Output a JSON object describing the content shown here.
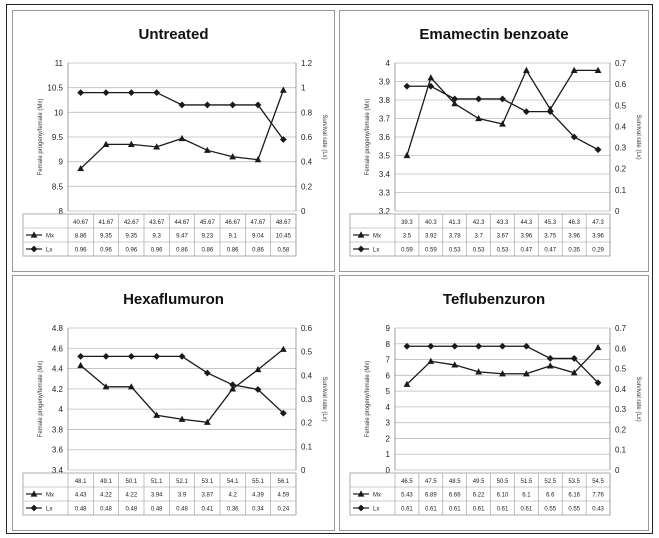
{
  "colors": {
    "series": "#1a1a1a",
    "grid": "#bdbdbd",
    "panel_border": "#9a9a9a"
  },
  "chart_data": [
    {
      "type": "line",
      "title": "Untreated",
      "ylabel": "Female progeny/female (Mx)",
      "y2label": "Survival rate (Lx)",
      "categories": [
        "40.67",
        "41.67",
        "42.67",
        "43.67",
        "44.67",
        "45.67",
        "46.67",
        "47.67",
        "48.67"
      ],
      "ylim": [
        8,
        11
      ],
      "ystep": 0.5,
      "yticks": [
        "8",
        "8.5",
        "9",
        "9.5",
        "10",
        "10.5",
        "11"
      ],
      "y2lim": [
        0,
        1.2
      ],
      "y2step": 0.2,
      "y2ticks": [
        "0",
        "0.2",
        "0.4",
        "0.6",
        "0.8",
        "1",
        "1.2"
      ],
      "series": [
        {
          "name": "Mx",
          "axis": "left",
          "marker": "triangle",
          "values": [
            8.86,
            9.35,
            9.35,
            9.3,
            9.47,
            9.23,
            9.1,
            9.04,
            10.45
          ],
          "labels": [
            "8.86",
            "9.35",
            "9.35",
            "9.3",
            "9.47",
            "9.23",
            "9.1",
            "9.04",
            "10.45"
          ]
        },
        {
          "name": "Lx",
          "axis": "right",
          "marker": "diamond",
          "values": [
            0.96,
            0.96,
            0.96,
            0.96,
            0.86,
            0.86,
            0.86,
            0.86,
            0.58
          ],
          "labels": [
            "0.96",
            "0.96",
            "0.96",
            "0.96",
            "0.86",
            "0.86",
            "0.86",
            "0.86",
            "0.58"
          ]
        }
      ]
    },
    {
      "type": "line",
      "title": "Emamectin benzoate",
      "ylabel": "Female progeny/female (Mx)",
      "y2label": "Survival rate (Lx)",
      "categories": [
        "39.3",
        "40.3",
        "41.3",
        "42.3",
        "43.3",
        "44.3",
        "45.3",
        "46.3",
        "47.3"
      ],
      "ylim": [
        3.2,
        4
      ],
      "ystep": 0.1,
      "yticks": [
        "3.2",
        "3.3",
        "3.4",
        "3.5",
        "3.6",
        "3.7",
        "3.8",
        "3.9",
        "4"
      ],
      "y2lim": [
        0,
        0.7
      ],
      "y2step": 0.1,
      "y2ticks": [
        "0",
        "0.1",
        "0.2",
        "0.3",
        "0.4",
        "0.5",
        "0.6",
        "0.7"
      ],
      "series": [
        {
          "name": "Mx",
          "axis": "left",
          "marker": "triangle",
          "values": [
            3.5,
            3.92,
            3.78,
            3.7,
            3.67,
            3.96,
            3.75,
            3.96,
            3.96
          ],
          "labels": [
            "3.5",
            "3.92",
            "3.78",
            "3.7",
            "3.67",
            "3.96",
            "3.75",
            "3.96",
            "3.96"
          ]
        },
        {
          "name": "Lx",
          "axis": "right",
          "marker": "diamond",
          "values": [
            0.59,
            0.59,
            0.53,
            0.53,
            0.53,
            0.47,
            0.47,
            0.35,
            0.29
          ],
          "labels": [
            "0.59",
            "0.59",
            "0.53",
            "0.53",
            "0.53",
            "0.47",
            "0.47",
            "0.35",
            "0.29"
          ]
        }
      ]
    },
    {
      "type": "line",
      "title": "Hexaflumuron",
      "ylabel": "Female progeny/female (Mx)",
      "y2label": "Survival rate (Lx)",
      "categories": [
        "48.1",
        "49.1",
        "50.1",
        "51.1",
        "52.1",
        "53.1",
        "54.1",
        "55.1",
        "56.1"
      ],
      "ylim": [
        3.4,
        4.8
      ],
      "ystep": 0.2,
      "yticks": [
        "3.4",
        "3.6",
        "3.8",
        "4",
        "4.2",
        "4.4",
        "4.6",
        "4.8"
      ],
      "y2lim": [
        0,
        0.6
      ],
      "y2step": 0.1,
      "y2ticks": [
        "0",
        "0.1",
        "0.2",
        "0.3",
        "0.4",
        "0.5",
        "0.6"
      ],
      "series": [
        {
          "name": "Mx",
          "axis": "left",
          "marker": "triangle",
          "values": [
            4.43,
            4.22,
            4.22,
            3.94,
            3.9,
            3.87,
            4.2,
            4.39,
            4.59
          ],
          "labels": [
            "4.43",
            "4.22",
            "4.22",
            "3.94",
            "3.9",
            "3.87",
            "4.2",
            "4.39",
            "4.59"
          ]
        },
        {
          "name": "Lx",
          "axis": "right",
          "marker": "diamond",
          "values": [
            0.48,
            0.48,
            0.48,
            0.48,
            0.48,
            0.41,
            0.36,
            0.34,
            0.24
          ],
          "labels": [
            "0.48",
            "0.48",
            "0.48",
            "0.48",
            "0.48",
            "0.41",
            "0.36",
            "0.34",
            "0.24"
          ]
        }
      ]
    },
    {
      "type": "line",
      "title": "Teflubenzuron",
      "ylabel": "Female progeny/female (Mx)",
      "y2label": "Survival rate (Lx)",
      "categories": [
        "46.5",
        "47.5",
        "48.5",
        "49.5",
        "50.5",
        "51.5",
        "52.5",
        "53.5",
        "54.5"
      ],
      "ylim": [
        0,
        9
      ],
      "ystep": 1,
      "yticks": [
        "0",
        "1",
        "2",
        "3",
        "4",
        "5",
        "6",
        "7",
        "8",
        "9"
      ],
      "y2lim": [
        0,
        0.7
      ],
      "y2step": 0.1,
      "y2ticks": [
        "0",
        "0.1",
        "0.2",
        "0.3",
        "0.4",
        "0.5",
        "0.6",
        "0.7"
      ],
      "series": [
        {
          "name": "Mx",
          "axis": "left",
          "marker": "triangle",
          "values": [
            5.43,
            6.89,
            6.66,
            6.22,
            6.1,
            6.1,
            6.6,
            6.16,
            7.76
          ],
          "labels": [
            "5.43",
            "6.89",
            "6.66",
            "6.22",
            "6.10",
            "6.1",
            "6.6",
            "6.16",
            "7.76"
          ]
        },
        {
          "name": "Lx",
          "axis": "right",
          "marker": "diamond",
          "values": [
            0.61,
            0.61,
            0.61,
            0.61,
            0.61,
            0.61,
            0.55,
            0.55,
            0.43
          ],
          "labels": [
            "0.61",
            "0.61",
            "0.61",
            "0.61",
            "0.61",
            "0.61",
            "0.55",
            "0.55",
            "0.43"
          ]
        }
      ]
    }
  ]
}
